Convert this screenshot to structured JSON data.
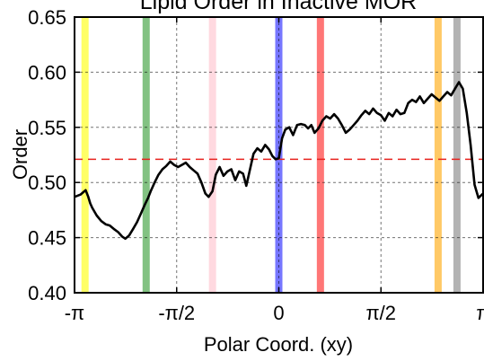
{
  "chart_data": {
    "type": "line",
    "title": "Lipid Order in Inactive MOR",
    "xlabel": "Polar Coord. (xy)",
    "ylabel": "Order",
    "xlim": [
      -3.14159,
      3.14159
    ],
    "ylim": [
      0.4,
      0.65
    ],
    "x_ticks": [
      -3.14159,
      -1.5708,
      0,
      1.5708,
      3.14159
    ],
    "x_tick_labels": [
      "-π",
      "-π/2",
      "0",
      "π/2",
      "π"
    ],
    "y_ticks": [
      0.4,
      0.45,
      0.5,
      0.55,
      0.6,
      0.65
    ],
    "y_tick_labels": [
      "0.40",
      "0.45",
      "0.50",
      "0.55",
      "0.60",
      "0.65"
    ],
    "grid": true,
    "reference_line": {
      "y": 0.521,
      "color": "#e8231f",
      "style": "dashed"
    },
    "bands": [
      {
        "x": -2.98,
        "color": "#ffff00"
      },
      {
        "x": -2.04,
        "color": "#2e9a2e"
      },
      {
        "x": -1.02,
        "color": "#ffc0cb"
      },
      {
        "x": 0.0,
        "color": "#1a1aff"
      },
      {
        "x": 0.64,
        "color": "#ff1a1a"
      },
      {
        "x": 2.45,
        "color": "#ffa500"
      },
      {
        "x": 2.74,
        "color": "#808080"
      }
    ],
    "series": [
      {
        "color": "#000000",
        "x": [
          -3.14,
          -3.05,
          -2.97,
          -2.93,
          -2.9,
          -2.87,
          -2.8,
          -2.73,
          -2.66,
          -2.6,
          -2.54,
          -2.47,
          -2.41,
          -2.36,
          -2.3,
          -2.24,
          -2.18,
          -2.12,
          -2.06,
          -2.01,
          -1.97,
          -1.91,
          -1.85,
          -1.79,
          -1.73,
          -1.67,
          -1.61,
          -1.55,
          -1.49,
          -1.43,
          -1.37,
          -1.31,
          -1.25,
          -1.19,
          -1.13,
          -1.08,
          -1.02,
          -0.97,
          -0.91,
          -0.85,
          -0.79,
          -0.73,
          -0.67,
          -0.61,
          -0.55,
          -0.5,
          -0.45,
          -0.39,
          -0.33,
          -0.27,
          -0.21,
          -0.15,
          -0.1,
          -0.05,
          0.0,
          0.05,
          0.1,
          0.16,
          0.22,
          0.28,
          0.34,
          0.4,
          0.45,
          0.5,
          0.55,
          0.61,
          0.67,
          0.73,
          0.79,
          0.85,
          0.91,
          0.97,
          1.03,
          1.09,
          1.15,
          1.21,
          1.27,
          1.33,
          1.39,
          1.45,
          1.51,
          1.57,
          1.63,
          1.69,
          1.75,
          1.81,
          1.87,
          1.93,
          1.99,
          2.05,
          2.11,
          2.17,
          2.23,
          2.29,
          2.35,
          2.41,
          2.47,
          2.53,
          2.59,
          2.65,
          2.71,
          2.77,
          2.83,
          2.89,
          2.95,
          3.01,
          3.07,
          3.14
        ],
        "y": [
          0.487,
          0.489,
          0.493,
          0.487,
          0.481,
          0.477,
          0.47,
          0.465,
          0.462,
          0.461,
          0.458,
          0.455,
          0.451,
          0.449,
          0.452,
          0.458,
          0.464,
          0.472,
          0.48,
          0.486,
          0.492,
          0.5,
          0.507,
          0.512,
          0.515,
          0.519,
          0.516,
          0.514,
          0.516,
          0.518,
          0.514,
          0.511,
          0.508,
          0.5,
          0.49,
          0.487,
          0.492,
          0.507,
          0.514,
          0.506,
          0.51,
          0.512,
          0.502,
          0.51,
          0.508,
          0.497,
          0.51,
          0.526,
          0.531,
          0.528,
          0.534,
          0.53,
          0.524,
          0.521,
          0.522,
          0.54,
          0.548,
          0.55,
          0.543,
          0.552,
          0.553,
          0.552,
          0.549,
          0.552,
          0.545,
          0.549,
          0.556,
          0.56,
          0.558,
          0.562,
          0.558,
          0.552,
          0.545,
          0.548,
          0.552,
          0.556,
          0.561,
          0.565,
          0.562,
          0.567,
          0.563,
          0.561,
          0.556,
          0.563,
          0.56,
          0.566,
          0.562,
          0.563,
          0.572,
          0.575,
          0.573,
          0.578,
          0.572,
          0.576,
          0.58,
          0.577,
          0.574,
          0.578,
          0.582,
          0.579,
          0.585,
          0.591,
          0.585,
          0.563,
          0.534,
          0.498,
          0.486,
          0.49
        ]
      }
    ]
  }
}
